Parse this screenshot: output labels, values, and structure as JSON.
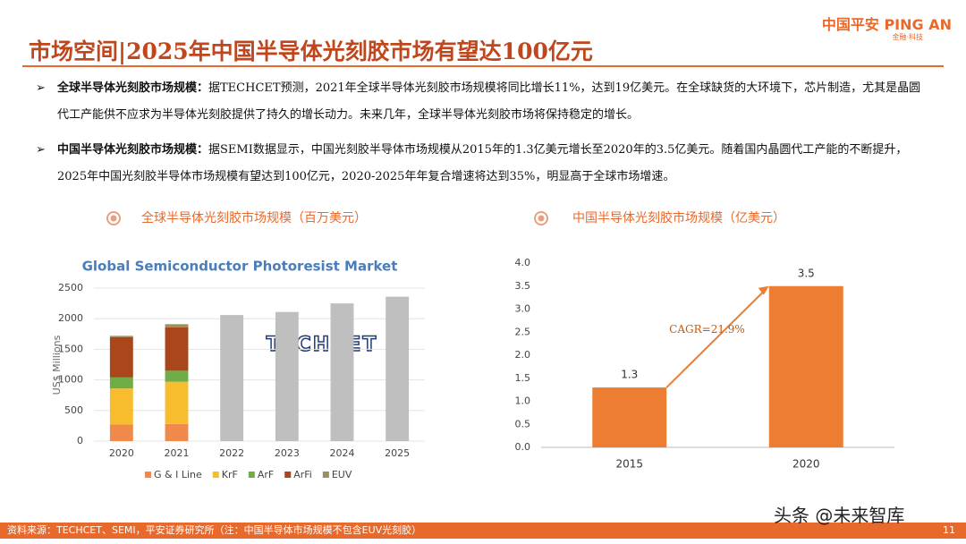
{
  "header": {
    "title": "市场空间|2025年中国半导体光刻胶市场有望达100亿元",
    "logo": "中国平安 PING AN",
    "logo_sub": "金融·科技"
  },
  "bullets": [
    {
      "lead": "全球半导体光刻胶市场规模：",
      "text": "据TECHCET预测，2021年全球半导体光刻胶市场规模将同比增长11%，达到19亿美元。在全球缺货的大环境下，芯片制造，尤其是晶圆代工产能供不应求为半导体光刻胶提供了持久的增长动力。未来几年，全球半导体光刻胶市场将保持稳定的增长。"
    },
    {
      "lead": "中国半导体光刻胶市场规模：",
      "text": "据SEMI数据显示，中国光刻胶半导体市场规模从2015年的1.3亿美元增长至2020年的3.5亿美元。随着国内晶圆代工产能的不断提升，2025年中国光刻胶半导体市场规模有望达到100亿元，2020-2025年年复合增速将达到35%，明显高于全球市场增速。"
    }
  ],
  "chart_data": [
    {
      "type": "bar",
      "stacked": true,
      "caption": "全球半导体光刻胶市场规模（百万美元）",
      "title": "Global Semiconductor Photoresist Market",
      "watermark": "TECHCET",
      "ylabel": "US$ Millions",
      "categories": [
        "2020",
        "2021",
        "2022",
        "2023",
        "2024",
        "2025"
      ],
      "series": [
        {
          "name": "G & I Line",
          "color": "#f08a4b",
          "values": [
            270,
            280,
            null,
            null,
            null,
            null
          ]
        },
        {
          "name": "KrF",
          "color": "#f7bd2e",
          "values": [
            590,
            690,
            null,
            null,
            null,
            null
          ]
        },
        {
          "name": "ArF",
          "color": "#70ad47",
          "values": [
            180,
            180,
            null,
            null,
            null,
            null
          ]
        },
        {
          "name": "ArFi",
          "color": "#a9471a",
          "values": [
            660,
            710,
            null,
            null,
            null,
            null
          ]
        },
        {
          "name": "EUV",
          "color": "#9c8f5a",
          "values": [
            20,
            50,
            null,
            null,
            null,
            null
          ]
        },
        {
          "name": null,
          "color": "#bfbfbf",
          "values": [
            null,
            null,
            2060,
            2110,
            2250,
            2360
          ]
        }
      ],
      "ylim": [
        0,
        2500
      ],
      "yticks": [
        0,
        500,
        1000,
        1500,
        2000,
        2500
      ],
      "grid": true,
      "legend": "bottom"
    },
    {
      "type": "bar",
      "caption": "中国半导体光刻胶市场规模（亿美元）",
      "categories": [
        "2015",
        "2020"
      ],
      "values": [
        1.3,
        3.5
      ],
      "color": "#ed7d31",
      "annotation": "CAGR=21.9%",
      "ylim": [
        0,
        4
      ],
      "yticks": [
        {
          "value": 0,
          "label": "0.0"
        },
        0.5,
        {
          "value": 1,
          "label": "1.0"
        },
        1.5,
        {
          "value": 2,
          "label": "2.0"
        },
        2.5,
        {
          "value": 3,
          "label": "3.0"
        },
        3.5,
        {
          "value": 4,
          "label": "4.0"
        }
      ],
      "grid": false,
      "show_values": true
    }
  ],
  "footer": {
    "source": "资料来源：TECHCET、SEMI，平安证券研究所（注：中国半导体市场规模不包含EUV光刻胶）",
    "page": "11",
    "watermark": "头条 @未来智库"
  }
}
